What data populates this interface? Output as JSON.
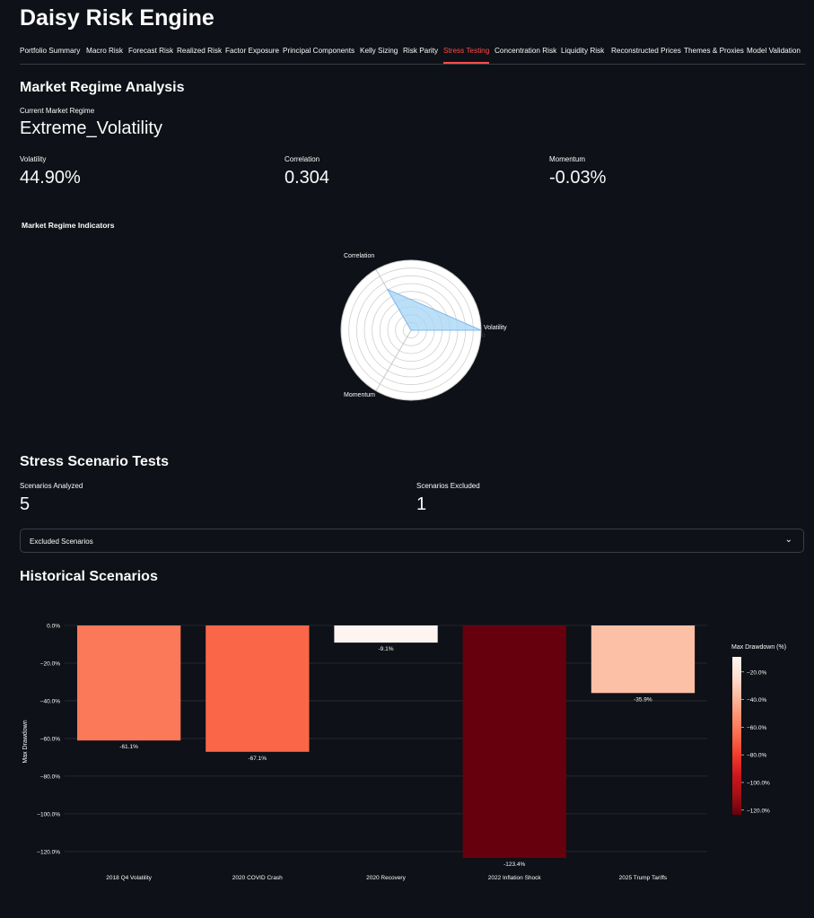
{
  "app": {
    "title": "Daisy Risk Engine"
  },
  "tabs": [
    "Portfolio Summary",
    "Macro Risk",
    "Forecast Risk",
    "Realized Risk",
    "Factor Exposure",
    "Principal Components",
    "Kelly Sizing",
    "Risk Parity",
    "Stress Testing",
    "Concentration Risk",
    "Liquidity Risk",
    "Reconstructed Prices",
    "Themes & Proxies",
    "Model Validation"
  ],
  "active_tab": "Stress Testing",
  "regime": {
    "heading": "Market Regime Analysis",
    "current_label": "Current Market Regime",
    "current_value": "Extreme_Volatility",
    "metrics": [
      {
        "label": "Volatility",
        "value": "44.90%"
      },
      {
        "label": "Correlation",
        "value": "0.304"
      },
      {
        "label": "Momentum",
        "value": "-0.03%"
      }
    ],
    "chart_heading": "Market Regime Indicators"
  },
  "stress": {
    "heading": "Stress Scenario Tests",
    "analyzed_label": "Scenarios Analyzed",
    "analyzed_value": "5",
    "excluded_label": "Scenarios Excluded",
    "excluded_value": "1",
    "expander_label": "Excluded Scenarios",
    "expander_icon": "chevron-down-icon"
  },
  "historical": {
    "heading": "Historical Scenarios"
  },
  "chart_data": [
    {
      "type": "radar",
      "title": "Market Regime Indicators",
      "axes": [
        "Volatility",
        "Correlation",
        "Momentum"
      ],
      "values": [
        0.449,
        0.304,
        -0.0003
      ],
      "radial_tick": "0",
      "fill_color": "#a6d4f5"
    },
    {
      "type": "bar",
      "categories": [
        "2018 Q4 Volatility",
        "2020 COVID Crash",
        "2020 Recovery",
        "2022 Inflation Shock",
        "2025 Trump Tariffs"
      ],
      "values": [
        -61.1,
        -67.1,
        -9.1,
        -123.4,
        -35.9
      ],
      "data_labels": [
        "-61.1%",
        "-67.1%",
        "-9.1%",
        "-123.4%",
        "-35.9%"
      ],
      "ylabel": "Max Drawdown",
      "ylim": [
        -123.4,
        0
      ],
      "yticks": [
        0,
        -20,
        -40,
        -60,
        -80,
        -100,
        -120
      ],
      "ytick_labels": [
        "0.0%",
        "−20.0%",
        "−40.0%",
        "−60.0%",
        "−80.0%",
        "−100.0%",
        "−120.0%"
      ],
      "colorbar": {
        "title": "Max Drawdown (%)",
        "range": [
          -123.4,
          -9.1
        ],
        "ticks": [
          -20,
          -40,
          -60,
          -80,
          -100,
          -120
        ],
        "tick_labels": [
          "−20.0%",
          "−40.0%",
          "−60.0%",
          "−80.0%",
          "−100.0%",
          "−120.0%"
        ],
        "colors": [
          "#67000d",
          "#a50f15",
          "#cb181d",
          "#ef3b2c",
          "#fb6a4a",
          "#fc9272",
          "#fcbba1",
          "#fee0d2",
          "#fff5f0"
        ]
      },
      "grid": true
    }
  ]
}
